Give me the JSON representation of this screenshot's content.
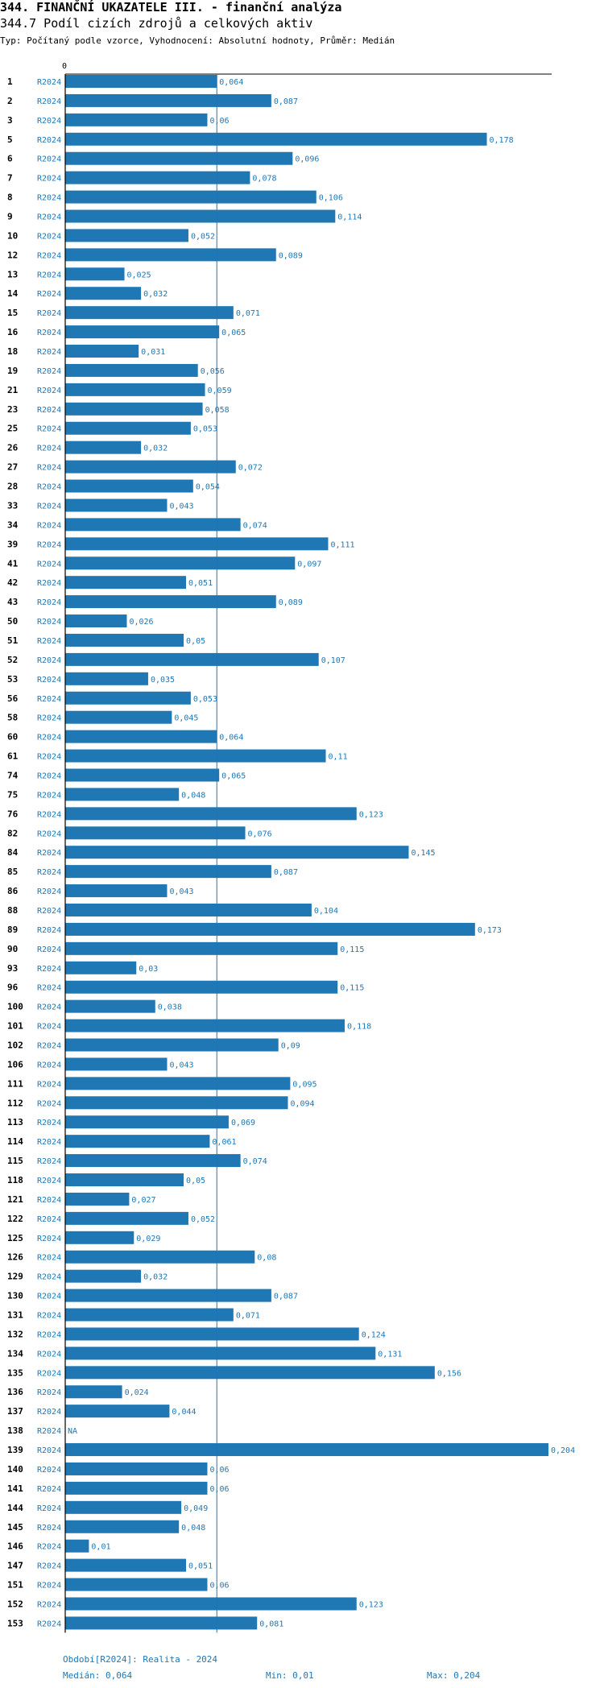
{
  "header": {
    "title": "344. FINANČNÍ UKAZATELE III. - finanční analýza",
    "subtitle": "344.7 Podíl cizích zdrojů a celkových aktiv",
    "meta": "Typ: Počítaný podle vzorce, Vyhodnocení: Absolutní hodnoty, Průměr: Medián"
  },
  "colors": {
    "bar": "#1f77b4",
    "text_blue": "#1f77b4",
    "axis": "#000000"
  },
  "chart_data": {
    "type": "bar",
    "orientation": "horizontal",
    "axis_zero_label": "0",
    "series_label": "R2024",
    "median": 0.064,
    "xlim": [
      0,
      0.204
    ],
    "categories": [
      "1",
      "2",
      "3",
      "5",
      "6",
      "7",
      "8",
      "9",
      "10",
      "12",
      "13",
      "14",
      "15",
      "16",
      "18",
      "19",
      "21",
      "23",
      "25",
      "26",
      "27",
      "28",
      "33",
      "34",
      "39",
      "41",
      "42",
      "43",
      "50",
      "51",
      "52",
      "53",
      "56",
      "58",
      "60",
      "61",
      "74",
      "75",
      "76",
      "82",
      "84",
      "85",
      "86",
      "88",
      "89",
      "90",
      "93",
      "96",
      "100",
      "101",
      "102",
      "106",
      "111",
      "112",
      "113",
      "114",
      "115",
      "118",
      "121",
      "122",
      "125",
      "126",
      "129",
      "130",
      "131",
      "132",
      "134",
      "135",
      "136",
      "137",
      "138",
      "139",
      "140",
      "141",
      "144",
      "145",
      "146",
      "147",
      "151",
      "152",
      "153"
    ],
    "values": [
      0.064,
      0.087,
      0.06,
      0.178,
      0.096,
      0.078,
      0.106,
      0.114,
      0.052,
      0.089,
      0.025,
      0.032,
      0.071,
      0.065,
      0.031,
      0.056,
      0.059,
      0.058,
      0.053,
      0.032,
      0.072,
      0.054,
      0.043,
      0.074,
      0.111,
      0.097,
      0.051,
      0.089,
      0.026,
      0.05,
      0.107,
      0.035,
      0.053,
      0.045,
      0.064,
      0.11,
      0.065,
      0.048,
      0.123,
      0.076,
      0.145,
      0.087,
      0.043,
      0.104,
      0.173,
      0.115,
      0.03,
      0.115,
      0.038,
      0.118,
      0.09,
      0.043,
      0.095,
      0.094,
      0.069,
      0.061,
      0.074,
      0.05,
      0.027,
      0.052,
      0.029,
      0.08,
      0.032,
      0.087,
      0.071,
      0.124,
      0.131,
      0.156,
      0.024,
      0.044,
      null,
      0.204,
      0.06,
      0.06,
      0.049,
      0.048,
      0.01,
      0.051,
      0.06,
      0.123,
      0.081
    ],
    "value_labels": [
      "0,064",
      "0,087",
      "0,06",
      "0,178",
      "0,096",
      "0,078",
      "0,106",
      "0,114",
      "0,052",
      "0,089",
      "0,025",
      "0,032",
      "0,071",
      "0,065",
      "0,031",
      "0,056",
      "0,059",
      "0,058",
      "0,053",
      "0,032",
      "0,072",
      "0,054",
      "0,043",
      "0,074",
      "0,111",
      "0,097",
      "0,051",
      "0,089",
      "0,026",
      "0,05",
      "0,107",
      "0,035",
      "0,053",
      "0,045",
      "0,064",
      "0,11",
      "0,065",
      "0,048",
      "0,123",
      "0,076",
      "0,145",
      "0,087",
      "0,043",
      "0,104",
      "0,173",
      "0,115",
      "0,03",
      "0,115",
      "0,038",
      "0,118",
      "0,09",
      "0,043",
      "0,095",
      "0,094",
      "0,069",
      "0,061",
      "0,074",
      "0,05",
      "0,027",
      "0,052",
      "0,029",
      "0,08",
      "0,032",
      "0,087",
      "0,071",
      "0,124",
      "0,131",
      "0,156",
      "0,024",
      "0,044",
      "NA",
      "0,204",
      "0,06",
      "0,06",
      "0,049",
      "0,048",
      "0,01",
      "0,051",
      "0,06",
      "0,123",
      "0,081"
    ]
  },
  "footer": {
    "period": "Období[R2024]: Realita - 2024",
    "median": "Medián: 0,064",
    "min": "Min: 0,01",
    "max": "Max: 0,204"
  }
}
